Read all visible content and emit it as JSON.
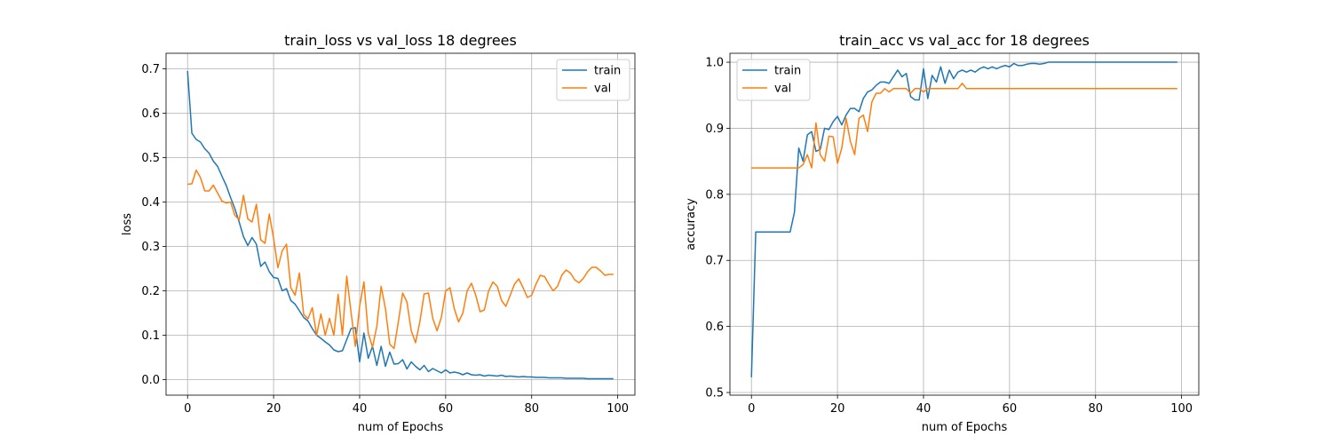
{
  "chart_data": [
    {
      "type": "line",
      "title": "train_loss vs val_loss 18 degrees",
      "xlabel": "num of Epochs",
      "ylabel": "loss",
      "xlim": [
        -5,
        104
      ],
      "ylim": [
        -0.035,
        0.735
      ],
      "xticks": [
        0,
        20,
        40,
        60,
        80,
        100
      ],
      "yticks": [
        0.0,
        0.1,
        0.2,
        0.3,
        0.4,
        0.5,
        0.6,
        0.7
      ],
      "ytick_decimals": 1,
      "grid": true,
      "legend_position": "upper right",
      "series": [
        {
          "name": "train",
          "color": "#1f77b4",
          "values": [
            0.695,
            0.555,
            0.541,
            0.535,
            0.52,
            0.51,
            0.492,
            0.48,
            0.458,
            0.437,
            0.41,
            0.385,
            0.355,
            0.322,
            0.302,
            0.32,
            0.305,
            0.255,
            0.265,
            0.243,
            0.23,
            0.228,
            0.2,
            0.205,
            0.178,
            0.17,
            0.155,
            0.14,
            0.132,
            0.115,
            0.1,
            0.093,
            0.085,
            0.078,
            0.067,
            0.063,
            0.065,
            0.09,
            0.115,
            0.117,
            0.04,
            0.105,
            0.048,
            0.075,
            0.032,
            0.075,
            0.03,
            0.062,
            0.035,
            0.036,
            0.045,
            0.024,
            0.04,
            0.03,
            0.022,
            0.032,
            0.018,
            0.025,
            0.02,
            0.015,
            0.022,
            0.015,
            0.017,
            0.015,
            0.011,
            0.015,
            0.011,
            0.01,
            0.011,
            0.008,
            0.01,
            0.009,
            0.008,
            0.01,
            0.007,
            0.008,
            0.007,
            0.006,
            0.007,
            0.006,
            0.006,
            0.005,
            0.005,
            0.005,
            0.004,
            0.004,
            0.004,
            0.004,
            0.003,
            0.003,
            0.003,
            0.003,
            0.003,
            0.002,
            0.002,
            0.002,
            0.002,
            0.002,
            0.002,
            0.002
          ]
        },
        {
          "name": "val",
          "color": "#ff7f0e",
          "values": [
            0.44,
            0.441,
            0.472,
            0.455,
            0.425,
            0.425,
            0.438,
            0.42,
            0.402,
            0.398,
            0.4,
            0.37,
            0.36,
            0.415,
            0.362,
            0.355,
            0.395,
            0.315,
            0.307,
            0.373,
            0.318,
            0.252,
            0.29,
            0.305,
            0.207,
            0.19,
            0.24,
            0.147,
            0.137,
            0.162,
            0.1,
            0.148,
            0.1,
            0.138,
            0.1,
            0.192,
            0.1,
            0.233,
            0.152,
            0.075,
            0.165,
            0.22,
            0.105,
            0.073,
            0.12,
            0.21,
            0.16,
            0.08,
            0.07,
            0.13,
            0.195,
            0.175,
            0.11,
            0.083,
            0.13,
            0.193,
            0.195,
            0.138,
            0.11,
            0.14,
            0.2,
            0.207,
            0.16,
            0.13,
            0.15,
            0.2,
            0.217,
            0.19,
            0.153,
            0.157,
            0.2,
            0.22,
            0.21,
            0.178,
            0.165,
            0.19,
            0.215,
            0.227,
            0.207,
            0.185,
            0.19,
            0.215,
            0.235,
            0.232,
            0.215,
            0.2,
            0.21,
            0.235,
            0.247,
            0.24,
            0.225,
            0.218,
            0.228,
            0.243,
            0.253,
            0.253,
            0.245,
            0.235,
            0.237,
            0.237
          ]
        }
      ]
    },
    {
      "type": "line",
      "title": "train_acc vs val_acc for 18 degrees",
      "xlabel": "num of Epochs",
      "ylabel": "accuracy",
      "xlim": [
        -5,
        104
      ],
      "ylim": [
        0.496,
        1.0135
      ],
      "xticks": [
        0,
        20,
        40,
        60,
        80,
        100
      ],
      "yticks": [
        0.5,
        0.6,
        0.7,
        0.8,
        0.9,
        1.0
      ],
      "ytick_decimals": 1,
      "grid": true,
      "legend_position": "upper left",
      "series": [
        {
          "name": "train",
          "color": "#1f77b4",
          "values": [
            0.523,
            0.743,
            0.743,
            0.743,
            0.743,
            0.743,
            0.743,
            0.743,
            0.743,
            0.743,
            0.773,
            0.87,
            0.85,
            0.89,
            0.895,
            0.865,
            0.868,
            0.9,
            0.898,
            0.91,
            0.918,
            0.905,
            0.92,
            0.93,
            0.93,
            0.925,
            0.945,
            0.955,
            0.958,
            0.965,
            0.97,
            0.97,
            0.968,
            0.978,
            0.988,
            0.978,
            0.983,
            0.948,
            0.943,
            0.943,
            0.99,
            0.945,
            0.98,
            0.97,
            0.993,
            0.968,
            0.988,
            0.975,
            0.985,
            0.988,
            0.985,
            0.988,
            0.985,
            0.99,
            0.993,
            0.99,
            0.993,
            0.99,
            0.993,
            0.995,
            0.993,
            0.998,
            0.995,
            0.995,
            0.997,
            0.998,
            0.998,
            0.997,
            0.998,
            1.0,
            1.0,
            1.0,
            1.0,
            1.0,
            1.0,
            1.0,
            1.0,
            1.0,
            1.0,
            1.0,
            1.0,
            1.0,
            1.0,
            1.0,
            1.0,
            1.0,
            1.0,
            1.0,
            1.0,
            1.0,
            1.0,
            1.0,
            1.0,
            1.0,
            1.0,
            1.0,
            1.0,
            1.0,
            1.0,
            1.0
          ]
        },
        {
          "name": "val",
          "color": "#ff7f0e",
          "values": [
            0.84,
            0.84,
            0.84,
            0.84,
            0.84,
            0.84,
            0.84,
            0.84,
            0.84,
            0.84,
            0.84,
            0.84,
            0.845,
            0.86,
            0.84,
            0.908,
            0.86,
            0.85,
            0.888,
            0.887,
            0.847,
            0.87,
            0.915,
            0.88,
            0.86,
            0.915,
            0.92,
            0.895,
            0.94,
            0.953,
            0.953,
            0.96,
            0.955,
            0.96,
            0.96,
            0.96,
            0.96,
            0.953,
            0.96,
            0.96,
            0.955,
            0.96,
            0.96,
            0.96,
            0.96,
            0.96,
            0.96,
            0.96,
            0.96,
            0.968,
            0.96,
            0.96,
            0.96,
            0.96,
            0.96,
            0.96,
            0.96,
            0.96,
            0.96,
            0.96,
            0.96,
            0.96,
            0.96,
            0.96,
            0.96,
            0.96,
            0.96,
            0.96,
            0.96,
            0.96,
            0.96,
            0.96,
            0.96,
            0.96,
            0.96,
            0.96,
            0.96,
            0.96,
            0.96,
            0.96,
            0.96,
            0.96,
            0.96,
            0.96,
            0.96,
            0.96,
            0.96,
            0.96,
            0.96,
            0.96,
            0.96,
            0.96,
            0.96,
            0.96,
            0.96,
            0.96,
            0.96,
            0.96,
            0.96,
            0.96
          ]
        }
      ]
    }
  ]
}
